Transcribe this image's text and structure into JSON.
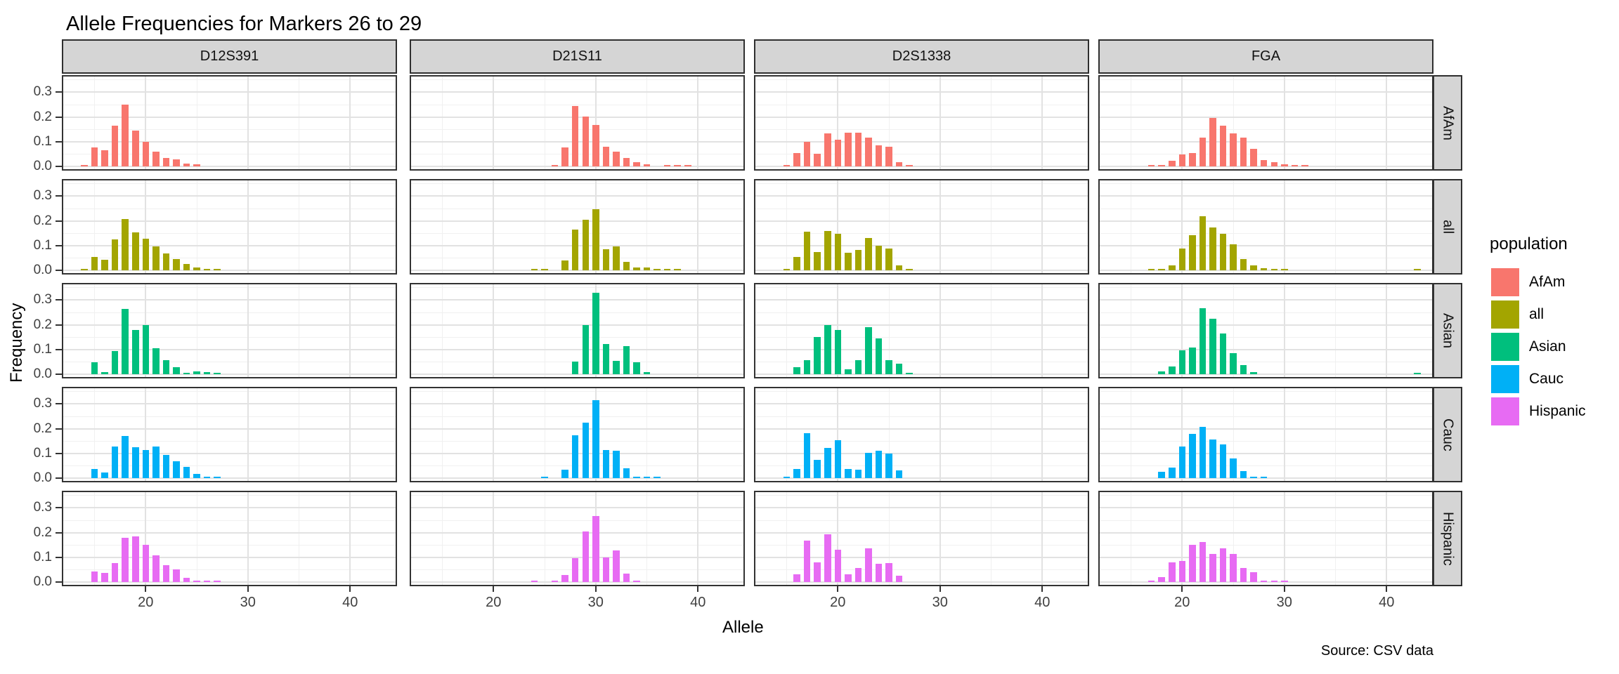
{
  "title": "Allele Frequencies for Markers 26 to 29",
  "x_axis_label": "Allele",
  "y_axis_label": "Frequency",
  "source_note": "Source: CSV data",
  "legend": {
    "title": "population",
    "entries": [
      {
        "label": "AfAm",
        "color": "#F8766D"
      },
      {
        "label": "all",
        "color": "#A3A500"
      },
      {
        "label": "Asian",
        "color": "#00BF7D"
      },
      {
        "label": "Cauc",
        "color": "#00B0F6"
      },
      {
        "label": "Hispanic",
        "color": "#E76BF3"
      }
    ]
  },
  "chart_data": {
    "type": "bar",
    "title": "Allele Frequencies for Markers 26 to 29",
    "xlabel": "Allele",
    "ylabel": "Frequency",
    "facet_columns": [
      "D12S391",
      "D21S11",
      "D2S1338",
      "FGA"
    ],
    "facet_rows": [
      "AfAm",
      "all",
      "Asian",
      "Cauc",
      "Hispanic"
    ],
    "x_ticks": [
      20,
      30,
      40
    ],
    "x_minor_ticks": [
      15,
      25,
      35
    ],
    "y_ticks": [
      {
        "v": 0.0,
        "label": "0.0"
      },
      {
        "v": 0.1,
        "label": "0.1"
      },
      {
        "v": 0.2,
        "label": "0.2"
      },
      {
        "v": 0.3,
        "label": "0.3"
      }
    ],
    "y_minor_ticks": [
      0.05,
      0.15,
      0.25,
      0.35
    ],
    "xlim": [
      11.8,
      44.8
    ],
    "ylim": [
      0,
      0.37
    ],
    "grid": true,
    "legend_position": "right",
    "series_colors": {
      "AfAm": "#F8766D",
      "all": "#A3A500",
      "Asian": "#00BF7D",
      "Cauc": "#00B0F6",
      "Hispanic": "#E76BF3"
    },
    "panels": [
      {
        "marker": "D12S391",
        "population": "AfAm",
        "bars": [
          [
            14,
            0.005
          ],
          [
            15,
            0.078
          ],
          [
            16,
            0.065
          ],
          [
            17,
            0.166
          ],
          [
            18,
            0.25
          ],
          [
            19,
            0.146
          ],
          [
            20,
            0.1
          ],
          [
            21,
            0.06
          ],
          [
            22,
            0.035
          ],
          [
            23,
            0.027
          ],
          [
            24,
            0.012
          ],
          [
            25,
            0.009
          ]
        ]
      },
      {
        "marker": "D21S11",
        "population": "AfAm",
        "bars": [
          [
            26,
            0.005
          ],
          [
            27,
            0.076
          ],
          [
            28,
            0.245
          ],
          [
            29,
            0.203
          ],
          [
            30,
            0.168
          ],
          [
            31,
            0.079
          ],
          [
            32,
            0.061
          ],
          [
            33,
            0.034
          ],
          [
            34,
            0.016
          ],
          [
            35,
            0.009
          ],
          [
            37,
            0.004
          ],
          [
            38,
            0.003
          ],
          [
            39,
            0.003
          ]
        ]
      },
      {
        "marker": "D2S1338",
        "population": "AfAm",
        "bars": [
          [
            15,
            0.004
          ],
          [
            16,
            0.054
          ],
          [
            17,
            0.1
          ],
          [
            18,
            0.051
          ],
          [
            19,
            0.134
          ],
          [
            20,
            0.109
          ],
          [
            21,
            0.136
          ],
          [
            22,
            0.136
          ],
          [
            23,
            0.116
          ],
          [
            24,
            0.085
          ],
          [
            25,
            0.079
          ],
          [
            26,
            0.018
          ],
          [
            27,
            0.005
          ]
        ]
      },
      {
        "marker": "FGA",
        "population": "AfAm",
        "bars": [
          [
            17,
            0.003
          ],
          [
            18,
            0.003
          ],
          [
            19,
            0.022
          ],
          [
            20,
            0.048
          ],
          [
            21,
            0.053
          ],
          [
            22,
            0.116
          ],
          [
            23,
            0.196
          ],
          [
            24,
            0.166
          ],
          [
            25,
            0.134
          ],
          [
            26,
            0.116
          ],
          [
            27,
            0.07
          ],
          [
            28,
            0.025
          ],
          [
            29,
            0.018
          ],
          [
            30,
            0.009
          ],
          [
            31,
            0.004
          ],
          [
            32,
            0.003
          ]
        ]
      },
      {
        "marker": "D12S391",
        "population": "all",
        "bars": [
          [
            14,
            0.003
          ],
          [
            15,
            0.054
          ],
          [
            16,
            0.042
          ],
          [
            17,
            0.125
          ],
          [
            18,
            0.208
          ],
          [
            19,
            0.152
          ],
          [
            20,
            0.127
          ],
          [
            21,
            0.098
          ],
          [
            22,
            0.067
          ],
          [
            23,
            0.046
          ],
          [
            24,
            0.025
          ],
          [
            25,
            0.012
          ],
          [
            26,
            0.005
          ],
          [
            27,
            0.003
          ]
        ]
      },
      {
        "marker": "D21S11",
        "population": "all",
        "bars": [
          [
            24,
            0.003
          ],
          [
            25,
            0.003
          ],
          [
            27,
            0.04
          ],
          [
            28,
            0.165
          ],
          [
            29,
            0.205
          ],
          [
            30,
            0.248
          ],
          [
            31,
            0.085
          ],
          [
            32,
            0.096
          ],
          [
            33,
            0.034
          ],
          [
            34,
            0.012
          ],
          [
            35,
            0.012
          ],
          [
            36,
            0.006
          ],
          [
            37,
            0.003
          ],
          [
            38,
            0.002
          ]
        ]
      },
      {
        "marker": "D2S1338",
        "population": "all",
        "bars": [
          [
            15,
            0.003
          ],
          [
            16,
            0.055
          ],
          [
            17,
            0.155
          ],
          [
            18,
            0.075
          ],
          [
            19,
            0.158
          ],
          [
            20,
            0.148
          ],
          [
            21,
            0.072
          ],
          [
            22,
            0.082
          ],
          [
            23,
            0.132
          ],
          [
            24,
            0.1
          ],
          [
            25,
            0.088
          ],
          [
            26,
            0.02
          ],
          [
            27,
            0.004
          ]
        ]
      },
      {
        "marker": "FGA",
        "population": "all",
        "bars": [
          [
            17,
            0.003
          ],
          [
            18,
            0.003
          ],
          [
            19,
            0.02
          ],
          [
            20,
            0.088
          ],
          [
            21,
            0.143
          ],
          [
            22,
            0.219
          ],
          [
            23,
            0.174
          ],
          [
            24,
            0.147
          ],
          [
            25,
            0.105
          ],
          [
            26,
            0.045
          ],
          [
            27,
            0.02
          ],
          [
            28,
            0.008
          ],
          [
            29,
            0.004
          ],
          [
            30,
            0.003
          ],
          [
            43,
            0.002
          ]
        ]
      },
      {
        "marker": "D12S391",
        "population": "Asian",
        "bars": [
          [
            15,
            0.049
          ],
          [
            16,
            0.009
          ],
          [
            17,
            0.094
          ],
          [
            18,
            0.263
          ],
          [
            19,
            0.179
          ],
          [
            20,
            0.198
          ],
          [
            21,
            0.105
          ],
          [
            22,
            0.058
          ],
          [
            23,
            0.027
          ],
          [
            24,
            0.007
          ],
          [
            25,
            0.011
          ],
          [
            26,
            0.009
          ],
          [
            27,
            0.004
          ]
        ]
      },
      {
        "marker": "D21S11",
        "population": "Asian",
        "bars": [
          [
            28,
            0.05
          ],
          [
            29,
            0.2
          ],
          [
            30,
            0.33
          ],
          [
            31,
            0.123
          ],
          [
            32,
            0.054
          ],
          [
            33,
            0.115
          ],
          [
            34,
            0.048
          ],
          [
            35,
            0.008
          ]
        ]
      },
      {
        "marker": "D2S1338",
        "population": "Asian",
        "bars": [
          [
            16,
            0.027
          ],
          [
            17,
            0.058
          ],
          [
            18,
            0.15
          ],
          [
            19,
            0.2
          ],
          [
            20,
            0.18
          ],
          [
            21,
            0.02
          ],
          [
            22,
            0.058
          ],
          [
            23,
            0.19
          ],
          [
            24,
            0.145
          ],
          [
            25,
            0.058
          ],
          [
            26,
            0.043
          ],
          [
            27,
            0.007
          ]
        ]
      },
      {
        "marker": "FGA",
        "population": "Asian",
        "bars": [
          [
            18,
            0.011
          ],
          [
            19,
            0.031
          ],
          [
            20,
            0.096
          ],
          [
            21,
            0.109
          ],
          [
            22,
            0.266
          ],
          [
            23,
            0.225
          ],
          [
            24,
            0.165
          ],
          [
            25,
            0.085
          ],
          [
            26,
            0.038
          ],
          [
            27,
            0.009
          ],
          [
            43,
            0.004
          ]
        ]
      },
      {
        "marker": "D12S391",
        "population": "Cauc",
        "bars": [
          [
            15,
            0.036
          ],
          [
            16,
            0.022
          ],
          [
            17,
            0.128
          ],
          [
            18,
            0.171
          ],
          [
            19,
            0.125
          ],
          [
            20,
            0.113
          ],
          [
            21,
            0.129
          ],
          [
            22,
            0.095
          ],
          [
            23,
            0.068
          ],
          [
            24,
            0.046
          ],
          [
            25,
            0.018
          ],
          [
            26,
            0.005
          ],
          [
            27,
            0.003
          ]
        ]
      },
      {
        "marker": "D21S11",
        "population": "Cauc",
        "bars": [
          [
            25,
            0.003
          ],
          [
            27,
            0.034
          ],
          [
            28,
            0.174
          ],
          [
            29,
            0.225
          ],
          [
            30,
            0.314
          ],
          [
            31,
            0.115
          ],
          [
            32,
            0.11
          ],
          [
            33,
            0.04
          ],
          [
            34,
            0.006
          ],
          [
            35,
            0.004
          ],
          [
            36,
            0.003
          ]
        ]
      },
      {
        "marker": "D2S1338",
        "population": "Cauc",
        "bars": [
          [
            15,
            0.003
          ],
          [
            16,
            0.038
          ],
          [
            17,
            0.183
          ],
          [
            18,
            0.073
          ],
          [
            19,
            0.121
          ],
          [
            20,
            0.154
          ],
          [
            21,
            0.036
          ],
          [
            22,
            0.034
          ],
          [
            23,
            0.103
          ],
          [
            24,
            0.112
          ],
          [
            25,
            0.1
          ],
          [
            26,
            0.031
          ]
        ]
      },
      {
        "marker": "FGA",
        "population": "Cauc",
        "bars": [
          [
            18,
            0.025
          ],
          [
            19,
            0.043
          ],
          [
            20,
            0.127
          ],
          [
            21,
            0.18
          ],
          [
            22,
            0.207
          ],
          [
            23,
            0.156
          ],
          [
            24,
            0.136
          ],
          [
            25,
            0.079
          ],
          [
            26,
            0.029
          ],
          [
            27,
            0.004
          ],
          [
            28,
            0.003
          ]
        ]
      },
      {
        "marker": "D12S391",
        "population": "Hispanic",
        "bars": [
          [
            15,
            0.043
          ],
          [
            16,
            0.038
          ],
          [
            17,
            0.076
          ],
          [
            18,
            0.179
          ],
          [
            19,
            0.186
          ],
          [
            20,
            0.15
          ],
          [
            21,
            0.107
          ],
          [
            22,
            0.067
          ],
          [
            23,
            0.052
          ],
          [
            24,
            0.016
          ],
          [
            25,
            0.007
          ],
          [
            26,
            0.006
          ],
          [
            27,
            0.006
          ]
        ]
      },
      {
        "marker": "D21S11",
        "population": "Hispanic",
        "bars": [
          [
            24,
            0.003
          ],
          [
            26,
            0.004
          ],
          [
            27,
            0.029
          ],
          [
            28,
            0.096
          ],
          [
            29,
            0.204
          ],
          [
            30,
            0.268
          ],
          [
            31,
            0.1
          ],
          [
            32,
            0.127
          ],
          [
            33,
            0.034
          ],
          [
            34,
            0.005
          ]
        ]
      },
      {
        "marker": "D2S1338",
        "population": "Hispanic",
        "bars": [
          [
            16,
            0.031
          ],
          [
            17,
            0.168
          ],
          [
            18,
            0.079
          ],
          [
            19,
            0.192
          ],
          [
            20,
            0.13
          ],
          [
            21,
            0.031
          ],
          [
            22,
            0.058
          ],
          [
            23,
            0.137
          ],
          [
            24,
            0.075
          ],
          [
            25,
            0.077
          ],
          [
            26,
            0.025
          ]
        ]
      },
      {
        "marker": "FGA",
        "population": "Hispanic",
        "bars": [
          [
            17,
            0.004
          ],
          [
            18,
            0.02
          ],
          [
            19,
            0.079
          ],
          [
            20,
            0.085
          ],
          [
            21,
            0.15
          ],
          [
            22,
            0.163
          ],
          [
            23,
            0.113
          ],
          [
            24,
            0.137
          ],
          [
            25,
            0.113
          ],
          [
            26,
            0.057
          ],
          [
            27,
            0.039
          ],
          [
            28,
            0.004
          ],
          [
            29,
            0.003
          ],
          [
            30,
            0.003
          ]
        ]
      }
    ]
  }
}
